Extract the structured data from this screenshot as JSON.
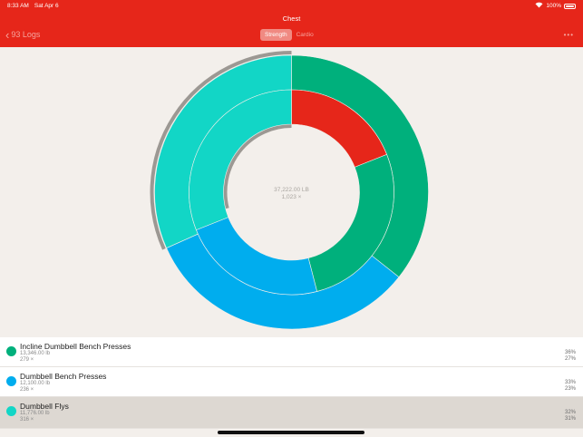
{
  "status_bar": {
    "time": "8:33 AM",
    "date": "Sat Apr 6",
    "battery": "100%"
  },
  "nav": {
    "title": "Chest",
    "back_label": "93 Logs",
    "segments": [
      {
        "label": "Strength",
        "selected": true
      },
      {
        "label": "Cardio",
        "selected": false
      }
    ],
    "more_label": "•••"
  },
  "center": {
    "weight_total": "37,222.00 LB",
    "reps_total": "1,023 ×"
  },
  "exercises": [
    {
      "name": "Incline Dumbbell Bench Presses",
      "weight": "13,346.00 lb",
      "reps": "279 ×",
      "weight_pct": "36%",
      "reps_pct": "27%",
      "color": "#00b07c",
      "selected": false
    },
    {
      "name": "Dumbbell Bench Presses",
      "weight": "12,100.00 lb",
      "reps": "236 ×",
      "weight_pct": "33%",
      "reps_pct": "23%",
      "color": "#00adee",
      "selected": false
    },
    {
      "name": "Dumbbell Flys",
      "weight": "11,776.00 lb",
      "reps": "316 ×",
      "weight_pct": "32%",
      "reps_pct": "31%",
      "color": "#12d6c6",
      "selected": true
    }
  ],
  "rep_segment_other": {
    "color": "#e6261a",
    "share": 0.19
  },
  "colors": {
    "accent": "#e6261a",
    "background": "#f3efeb",
    "highlight_arc": "#9c9893"
  }
}
